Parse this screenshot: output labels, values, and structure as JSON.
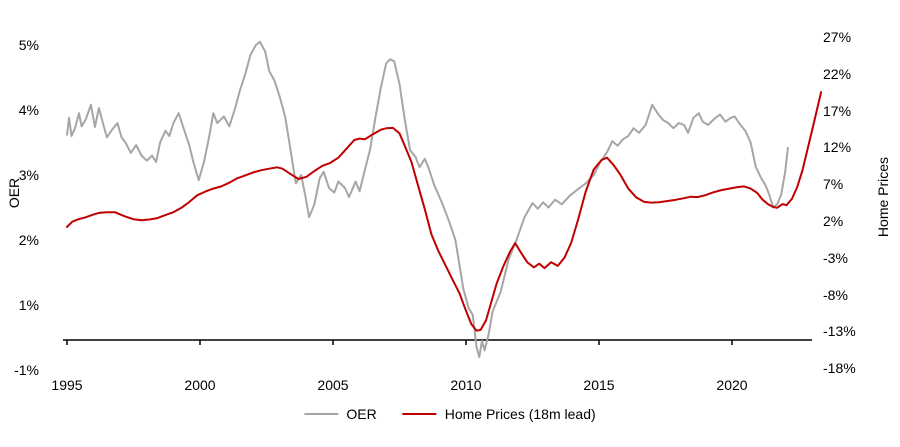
{
  "chart_data": {
    "type": "line",
    "title": "",
    "legend_position": "bottom-center",
    "notes": "Dual-axis line chart. Horizontal axis line sits at the -13% level of the right axis; gray OER line dips below it around 2010. OER series ends ~2022, Home Prices (18m lead) series ends ~2023 rising sharply.",
    "x_axis": {
      "ticks": [
        "1995",
        "2000",
        "2005",
        "2010",
        "2015",
        "2020"
      ],
      "range": [
        1995,
        2023.4
      ]
    },
    "left_axis": {
      "title": "OER",
      "ticks": [
        "5%",
        "4%",
        "3%",
        "2%",
        "1%",
        "-1%"
      ],
      "unit": "percent"
    },
    "right_axis": {
      "title": "Home Prices",
      "ticks": [
        "27%",
        "22%",
        "17%",
        "12%",
        "7%",
        "2%",
        "-3%",
        "-8%",
        "-13%",
        "-18%"
      ],
      "unit": "percent"
    },
    "colors": {
      "oer": "#a6a6a6",
      "home_prices": "#c00000",
      "axis": "#000000"
    },
    "series": [
      {
        "name": "OER",
        "axis": "left",
        "color": "#a6a6a6",
        "points": [
          [
            1995.0,
            3.62
          ],
          [
            1995.08,
            3.88
          ],
          [
            1995.17,
            3.6
          ],
          [
            1995.3,
            3.72
          ],
          [
            1995.45,
            3.95
          ],
          [
            1995.55,
            3.75
          ],
          [
            1995.7,
            3.85
          ],
          [
            1995.9,
            4.08
          ],
          [
            1996.05,
            3.74
          ],
          [
            1996.2,
            4.03
          ],
          [
            1996.35,
            3.8
          ],
          [
            1996.5,
            3.58
          ],
          [
            1996.7,
            3.7
          ],
          [
            1996.9,
            3.8
          ],
          [
            1997.05,
            3.58
          ],
          [
            1997.2,
            3.5
          ],
          [
            1997.4,
            3.34
          ],
          [
            1997.6,
            3.46
          ],
          [
            1997.8,
            3.3
          ],
          [
            1998.0,
            3.22
          ],
          [
            1998.2,
            3.3
          ],
          [
            1998.35,
            3.2
          ],
          [
            1998.5,
            3.5
          ],
          [
            1998.7,
            3.68
          ],
          [
            1998.85,
            3.6
          ],
          [
            1999.0,
            3.8
          ],
          [
            1999.2,
            3.95
          ],
          [
            1999.4,
            3.7
          ],
          [
            1999.6,
            3.45
          ],
          [
            1999.75,
            3.2
          ],
          [
            1999.95,
            2.92
          ],
          [
            2000.15,
            3.2
          ],
          [
            2000.35,
            3.6
          ],
          [
            2000.5,
            3.95
          ],
          [
            2000.65,
            3.8
          ],
          [
            2000.9,
            3.9
          ],
          [
            2001.1,
            3.75
          ],
          [
            2001.3,
            4.0
          ],
          [
            2001.5,
            4.3
          ],
          [
            2001.7,
            4.55
          ],
          [
            2001.9,
            4.85
          ],
          [
            2002.1,
            5.0
          ],
          [
            2002.25,
            5.05
          ],
          [
            2002.45,
            4.9
          ],
          [
            2002.6,
            4.6
          ],
          [
            2002.8,
            4.45
          ],
          [
            2003.0,
            4.2
          ],
          [
            2003.2,
            3.9
          ],
          [
            2003.4,
            3.4
          ],
          [
            2003.6,
            2.87
          ],
          [
            2003.8,
            3.0
          ],
          [
            2003.95,
            2.7
          ],
          [
            2004.1,
            2.35
          ],
          [
            2004.3,
            2.55
          ],
          [
            2004.5,
            2.95
          ],
          [
            2004.65,
            3.05
          ],
          [
            2004.85,
            2.8
          ],
          [
            2005.05,
            2.73
          ],
          [
            2005.2,
            2.9
          ],
          [
            2005.45,
            2.8
          ],
          [
            2005.6,
            2.66
          ],
          [
            2005.85,
            2.9
          ],
          [
            2006.0,
            2.75
          ],
          [
            2006.2,
            3.08
          ],
          [
            2006.4,
            3.4
          ],
          [
            2006.6,
            3.9
          ],
          [
            2006.8,
            4.35
          ],
          [
            2007.0,
            4.72
          ],
          [
            2007.15,
            4.78
          ],
          [
            2007.3,
            4.75
          ],
          [
            2007.5,
            4.4
          ],
          [
            2007.7,
            3.85
          ],
          [
            2007.9,
            3.38
          ],
          [
            2008.1,
            3.28
          ],
          [
            2008.25,
            3.12
          ],
          [
            2008.45,
            3.25
          ],
          [
            2008.6,
            3.1
          ],
          [
            2008.8,
            2.85
          ],
          [
            2009.1,
            2.57
          ],
          [
            2009.4,
            2.25
          ],
          [
            2009.6,
            2.0
          ],
          [
            2009.9,
            1.25
          ],
          [
            2010.1,
            0.95
          ],
          [
            2010.25,
            0.85
          ],
          [
            2010.4,
            0.35
          ],
          [
            2010.5,
            0.2
          ],
          [
            2010.6,
            0.45
          ],
          [
            2010.7,
            0.3
          ],
          [
            2010.85,
            0.55
          ],
          [
            2011.0,
            0.9
          ],
          [
            2011.3,
            1.2
          ],
          [
            2011.6,
            1.7
          ],
          [
            2011.9,
            2.0
          ],
          [
            2012.2,
            2.35
          ],
          [
            2012.5,
            2.57
          ],
          [
            2012.7,
            2.48
          ],
          [
            2012.9,
            2.58
          ],
          [
            2013.1,
            2.5
          ],
          [
            2013.35,
            2.62
          ],
          [
            2013.6,
            2.55
          ],
          [
            2013.9,
            2.68
          ],
          [
            2014.2,
            2.78
          ],
          [
            2014.5,
            2.87
          ],
          [
            2014.8,
            3.0
          ],
          [
            2015.05,
            3.2
          ],
          [
            2015.3,
            3.35
          ],
          [
            2015.5,
            3.52
          ],
          [
            2015.7,
            3.45
          ],
          [
            2015.9,
            3.55
          ],
          [
            2016.1,
            3.6
          ],
          [
            2016.3,
            3.72
          ],
          [
            2016.5,
            3.65
          ],
          [
            2016.75,
            3.77
          ],
          [
            2016.9,
            3.95
          ],
          [
            2017.0,
            4.08
          ],
          [
            2017.2,
            3.95
          ],
          [
            2017.4,
            3.85
          ],
          [
            2017.6,
            3.8
          ],
          [
            2017.8,
            3.72
          ],
          [
            2018.0,
            3.8
          ],
          [
            2018.2,
            3.77
          ],
          [
            2018.35,
            3.65
          ],
          [
            2018.55,
            3.88
          ],
          [
            2018.75,
            3.95
          ],
          [
            2018.9,
            3.82
          ],
          [
            2019.1,
            3.77
          ],
          [
            2019.35,
            3.87
          ],
          [
            2019.55,
            3.93
          ],
          [
            2019.75,
            3.82
          ],
          [
            2019.95,
            3.88
          ],
          [
            2020.1,
            3.9
          ],
          [
            2020.3,
            3.78
          ],
          [
            2020.5,
            3.68
          ],
          [
            2020.7,
            3.5
          ],
          [
            2020.9,
            3.12
          ],
          [
            2021.1,
            2.95
          ],
          [
            2021.25,
            2.85
          ],
          [
            2021.4,
            2.7
          ],
          [
            2021.55,
            2.5
          ],
          [
            2021.7,
            2.55
          ],
          [
            2021.85,
            2.7
          ],
          [
            2022.0,
            3.05
          ],
          [
            2022.1,
            3.42
          ]
        ]
      },
      {
        "name": "Home Prices (18m lead)",
        "axis": "right",
        "color": "#c00000",
        "points": [
          [
            1995.0,
            1.2
          ],
          [
            1995.2,
            1.9
          ],
          [
            1995.4,
            2.2
          ],
          [
            1995.7,
            2.5
          ],
          [
            1996.0,
            2.9
          ],
          [
            1996.2,
            3.1
          ],
          [
            1996.5,
            3.2
          ],
          [
            1996.8,
            3.2
          ],
          [
            1997.0,
            2.9
          ],
          [
            1997.2,
            2.6
          ],
          [
            1997.5,
            2.25
          ],
          [
            1997.8,
            2.1
          ],
          [
            1998.1,
            2.2
          ],
          [
            1998.4,
            2.4
          ],
          [
            1998.7,
            2.8
          ],
          [
            1999.0,
            3.2
          ],
          [
            1999.3,
            3.8
          ],
          [
            1999.6,
            4.6
          ],
          [
            1999.9,
            5.5
          ],
          [
            2000.2,
            6.0
          ],
          [
            2000.5,
            6.4
          ],
          [
            2000.8,
            6.7
          ],
          [
            2001.1,
            7.2
          ],
          [
            2001.4,
            7.8
          ],
          [
            2001.7,
            8.2
          ],
          [
            2002.0,
            8.6
          ],
          [
            2002.3,
            8.9
          ],
          [
            2002.6,
            9.1
          ],
          [
            2002.9,
            9.3
          ],
          [
            2003.1,
            9.1
          ],
          [
            2003.4,
            8.4
          ],
          [
            2003.7,
            7.7
          ],
          [
            2004.0,
            8.0
          ],
          [
            2004.3,
            8.8
          ],
          [
            2004.6,
            9.5
          ],
          [
            2004.9,
            9.9
          ],
          [
            2005.2,
            10.6
          ],
          [
            2005.5,
            11.8
          ],
          [
            2005.8,
            13.0
          ],
          [
            2006.0,
            13.2
          ],
          [
            2006.2,
            13.1
          ],
          [
            2006.5,
            13.8
          ],
          [
            2006.8,
            14.4
          ],
          [
            2007.0,
            14.6
          ],
          [
            2007.25,
            14.65
          ],
          [
            2007.5,
            13.9
          ],
          [
            2007.7,
            12.2
          ],
          [
            2007.95,
            10.0
          ],
          [
            2008.2,
            6.8
          ],
          [
            2008.45,
            3.6
          ],
          [
            2008.7,
            0.2
          ],
          [
            2008.95,
            -2.0
          ],
          [
            2009.2,
            -3.8
          ],
          [
            2009.5,
            -6.0
          ],
          [
            2009.75,
            -7.8
          ],
          [
            2010.0,
            -10.2
          ],
          [
            2010.2,
            -12.0
          ],
          [
            2010.4,
            -12.9
          ],
          [
            2010.55,
            -12.8
          ],
          [
            2010.75,
            -11.5
          ],
          [
            2010.95,
            -9.0
          ],
          [
            2011.15,
            -6.5
          ],
          [
            2011.4,
            -4.2
          ],
          [
            2011.65,
            -2.2
          ],
          [
            2011.85,
            -1.0
          ],
          [
            2012.05,
            -2.2
          ],
          [
            2012.3,
            -3.6
          ],
          [
            2012.55,
            -4.3
          ],
          [
            2012.75,
            -3.8
          ],
          [
            2012.95,
            -4.4
          ],
          [
            2013.2,
            -3.6
          ],
          [
            2013.45,
            -4.1
          ],
          [
            2013.7,
            -3.0
          ],
          [
            2013.95,
            -1.0
          ],
          [
            2014.2,
            2.0
          ],
          [
            2014.5,
            6.0
          ],
          [
            2014.8,
            9.0
          ],
          [
            2015.1,
            10.3
          ],
          [
            2015.3,
            10.6
          ],
          [
            2015.55,
            9.6
          ],
          [
            2015.8,
            8.3
          ],
          [
            2016.1,
            6.4
          ],
          [
            2016.4,
            5.2
          ],
          [
            2016.7,
            4.6
          ],
          [
            2016.95,
            4.5
          ],
          [
            2017.25,
            4.55
          ],
          [
            2017.55,
            4.7
          ],
          [
            2017.9,
            4.9
          ],
          [
            2018.2,
            5.1
          ],
          [
            2018.45,
            5.3
          ],
          [
            2018.7,
            5.25
          ],
          [
            2019.0,
            5.5
          ],
          [
            2019.3,
            5.9
          ],
          [
            2019.6,
            6.2
          ],
          [
            2019.9,
            6.4
          ],
          [
            2020.2,
            6.6
          ],
          [
            2020.45,
            6.7
          ],
          [
            2020.7,
            6.4
          ],
          [
            2020.95,
            5.8
          ],
          [
            2021.15,
            4.9
          ],
          [
            2021.35,
            4.3
          ],
          [
            2021.55,
            3.9
          ],
          [
            2021.7,
            3.8
          ],
          [
            2021.9,
            4.3
          ],
          [
            2022.05,
            4.15
          ],
          [
            2022.25,
            5.0
          ],
          [
            2022.45,
            6.6
          ],
          [
            2022.65,
            8.9
          ],
          [
            2022.85,
            11.9
          ],
          [
            2023.05,
            14.9
          ],
          [
            2023.2,
            17.2
          ],
          [
            2023.35,
            19.5
          ]
        ]
      }
    ]
  }
}
